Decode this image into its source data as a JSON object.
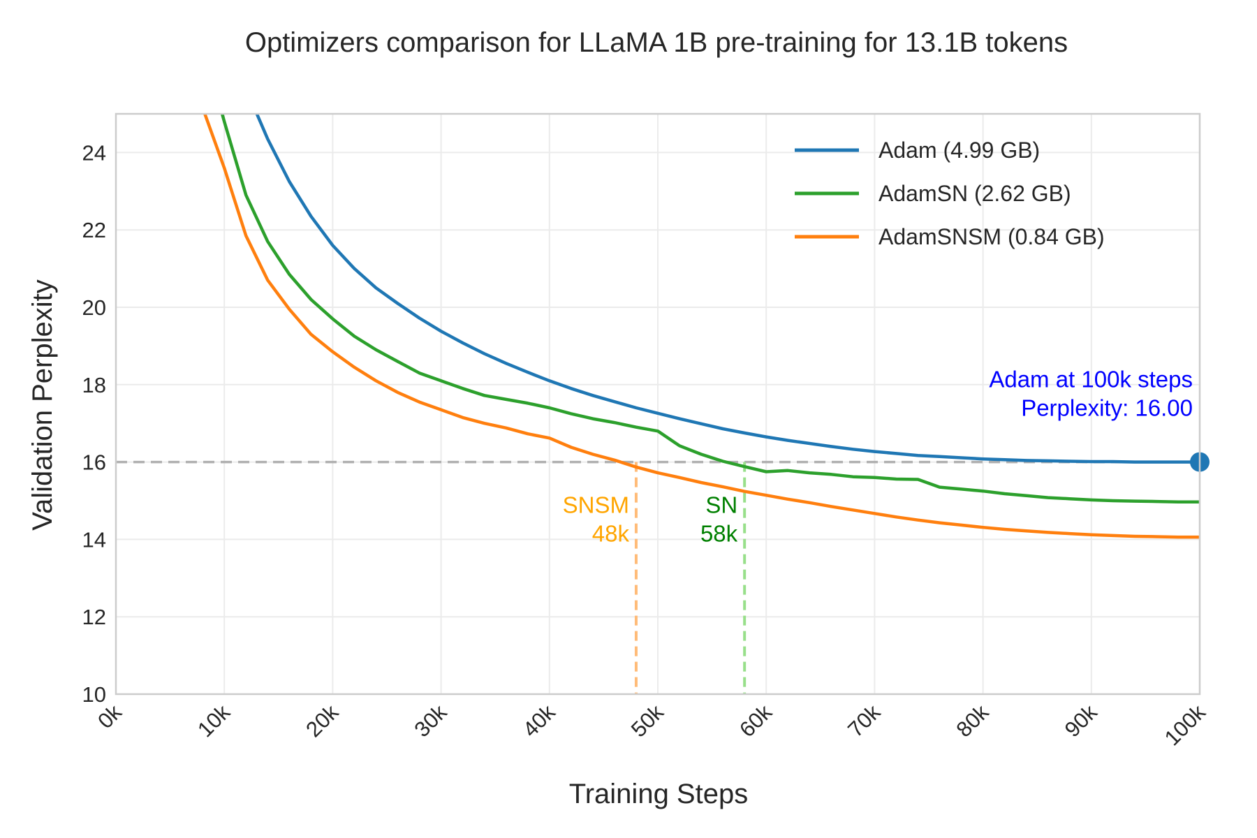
{
  "chart_data": {
    "type": "line",
    "title": "Optimizers comparison for LLaMA 1B pre-training for 13.1B tokens",
    "xlabel": "Training Steps",
    "ylabel": "Validation Perplexity",
    "xlim": [
      0,
      100000
    ],
    "ylim": [
      10,
      25
    ],
    "grid": true,
    "legend": "top-right",
    "x_ticks": [
      0,
      10000,
      20000,
      30000,
      40000,
      50000,
      60000,
      70000,
      80000,
      90000,
      100000
    ],
    "x_tick_labels": [
      "0k",
      "10k",
      "20k",
      "30k",
      "40k",
      "50k",
      "60k",
      "70k",
      "80k",
      "90k",
      "100k"
    ],
    "y_ticks": [
      10,
      12,
      14,
      16,
      18,
      20,
      22,
      24
    ],
    "y_tick_labels": [
      "10",
      "12",
      "14",
      "16",
      "18",
      "20",
      "22",
      "24"
    ],
    "series": [
      {
        "name": "Adam (4.99 GB)",
        "color": "#1f77b4",
        "x": [
          13000,
          14000,
          16000,
          18000,
          20000,
          22000,
          24000,
          26000,
          28000,
          30000,
          32000,
          34000,
          36000,
          38000,
          40000,
          42000,
          44000,
          46000,
          48000,
          50000,
          52000,
          54000,
          56000,
          58000,
          60000,
          62000,
          64000,
          66000,
          68000,
          70000,
          72000,
          74000,
          76000,
          78000,
          80000,
          82000,
          84000,
          86000,
          88000,
          90000,
          92000,
          94000,
          96000,
          98000,
          100000
        ],
        "y": [
          25.0,
          24.35,
          23.25,
          22.35,
          21.6,
          21.0,
          20.5,
          20.1,
          19.72,
          19.38,
          19.08,
          18.8,
          18.55,
          18.32,
          18.1,
          17.9,
          17.72,
          17.56,
          17.4,
          17.26,
          17.12,
          16.99,
          16.86,
          16.75,
          16.65,
          16.56,
          16.48,
          16.4,
          16.33,
          16.27,
          16.22,
          16.17,
          16.14,
          16.11,
          16.08,
          16.06,
          16.04,
          16.03,
          16.02,
          16.01,
          16.01,
          16.0,
          16.0,
          16.0,
          16.0
        ]
      },
      {
        "name": "AdamSN (2.62 GB)",
        "color": "#2ca02c",
        "x": [
          9800,
          10000,
          12000,
          14000,
          16000,
          18000,
          20000,
          22000,
          24000,
          26000,
          28000,
          30000,
          32000,
          34000,
          36000,
          38000,
          40000,
          42000,
          44000,
          46000,
          48000,
          50000,
          52000,
          54000,
          56000,
          58000,
          60000,
          62000,
          64000,
          66000,
          68000,
          70000,
          72000,
          74000,
          76000,
          78000,
          80000,
          82000,
          84000,
          86000,
          88000,
          90000,
          92000,
          94000,
          96000,
          98000,
          100000
        ],
        "y": [
          25.0,
          24.8,
          22.9,
          21.7,
          20.85,
          20.2,
          19.7,
          19.25,
          18.9,
          18.6,
          18.3,
          18.1,
          17.9,
          17.72,
          17.62,
          17.52,
          17.4,
          17.25,
          17.12,
          17.02,
          16.9,
          16.8,
          16.42,
          16.2,
          16.02,
          15.88,
          15.75,
          15.78,
          15.72,
          15.68,
          15.62,
          15.6,
          15.56,
          15.55,
          15.35,
          15.3,
          15.25,
          15.18,
          15.13,
          15.08,
          15.05,
          15.02,
          15.0,
          14.99,
          14.98,
          14.97,
          14.97
        ]
      },
      {
        "name": "AdamSNSM (0.84 GB)",
        "color": "#ff7f0e",
        "x": [
          8200,
          10000,
          12000,
          14000,
          16000,
          18000,
          20000,
          22000,
          24000,
          26000,
          28000,
          30000,
          32000,
          34000,
          36000,
          38000,
          40000,
          42000,
          44000,
          46000,
          48000,
          50000,
          52000,
          54000,
          56000,
          58000,
          60000,
          62000,
          64000,
          66000,
          68000,
          70000,
          72000,
          74000,
          76000,
          78000,
          80000,
          82000,
          84000,
          86000,
          88000,
          90000,
          92000,
          94000,
          96000,
          98000,
          100000
        ],
        "y": [
          25.0,
          23.6,
          21.85,
          20.7,
          19.95,
          19.3,
          18.85,
          18.45,
          18.1,
          17.8,
          17.55,
          17.35,
          17.15,
          17.0,
          16.88,
          16.73,
          16.62,
          16.38,
          16.2,
          16.05,
          15.87,
          15.72,
          15.6,
          15.47,
          15.36,
          15.24,
          15.14,
          15.04,
          14.95,
          14.85,
          14.76,
          14.67,
          14.58,
          14.5,
          14.43,
          14.37,
          14.31,
          14.26,
          14.22,
          14.18,
          14.15,
          14.12,
          14.1,
          14.08,
          14.07,
          14.06,
          14.06
        ]
      }
    ],
    "reference_line": {
      "y": 16.0,
      "color": "#b0b0b0"
    },
    "markers": [
      {
        "x": 100000,
        "y": 16.0,
        "color": "#1f77b4"
      }
    ],
    "vlines": [
      {
        "x": 48000,
        "color": "#ffbb78",
        "label_line1": "SNSM",
        "label_line2": "48k",
        "text_color": "#ffa500"
      },
      {
        "x": 58000,
        "color": "#98df8a",
        "label_line1": "SN",
        "label_line2": "58k",
        "text_color": "#008000"
      },
      {
        "x": 100000,
        "color": "#aec7e8"
      }
    ],
    "annotation": {
      "line1": "Adam at 100k steps",
      "line2": "Perplexity: 16.00",
      "color": "#0000ff",
      "x": 100000,
      "y": 16.0
    }
  }
}
